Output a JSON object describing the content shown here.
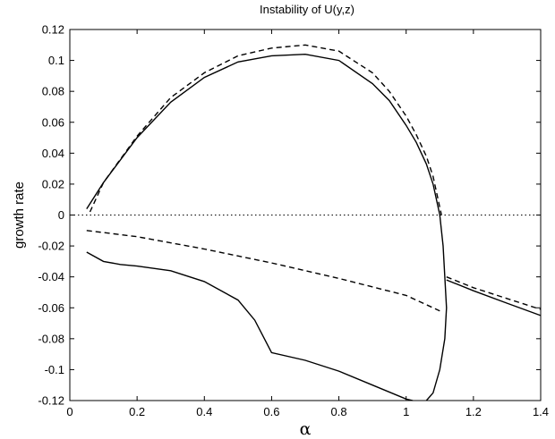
{
  "chart_data": {
    "type": "line",
    "title": "Instability of U(y,z)",
    "xlabel": "α",
    "ylabel": "growth rate",
    "xlim": [
      0,
      1.4
    ],
    "ylim": [
      -0.12,
      0.12
    ],
    "xticks": [
      "0",
      "0.2",
      "0.4",
      "0.6",
      "0.8",
      "1",
      "1.2",
      "1.4"
    ],
    "yticks": [
      "-0.12",
      "-0.1",
      "-0.08",
      "-0.06",
      "-0.04",
      "-0.02",
      "0",
      "0.02",
      "0.04",
      "0.06",
      "0.08",
      "0.1",
      "0.12"
    ],
    "grid": false,
    "series": [
      {
        "style": "solid",
        "color": "#000000",
        "x": [
          0.05,
          0.1,
          0.2,
          0.3,
          0.4,
          0.5,
          0.6,
          0.7,
          0.8,
          0.9,
          0.95,
          1.0,
          1.03,
          1.06,
          1.08,
          1.1,
          1.11,
          1.115,
          1.12,
          1.115,
          1.1,
          1.08,
          1.06
        ],
        "y": [
          0.004,
          0.021,
          0.05,
          0.073,
          0.089,
          0.099,
          0.103,
          0.104,
          0.1,
          0.085,
          0.074,
          0.058,
          0.047,
          0.033,
          0.02,
          0.0,
          -0.02,
          -0.04,
          -0.06,
          -0.08,
          -0.1,
          -0.115,
          -0.12
        ]
      },
      {
        "style": "solid",
        "color": "#000000",
        "x": [
          0.05,
          0.1,
          0.15,
          0.2,
          0.3,
          0.4,
          0.5,
          0.55,
          0.6,
          0.7,
          0.8,
          0.9,
          1.0,
          1.02
        ],
        "y": [
          -0.024,
          -0.03,
          -0.032,
          -0.033,
          -0.036,
          -0.043,
          -0.055,
          -0.068,
          -0.089,
          -0.094,
          -0.101,
          -0.11,
          -0.119,
          -0.12
        ]
      },
      {
        "style": "solid",
        "color": "#000000",
        "x": [
          1.12,
          1.2,
          1.3,
          1.4
        ],
        "y": [
          -0.042,
          -0.049,
          -0.057,
          -0.065
        ]
      },
      {
        "style": "dashed",
        "color": "#000000",
        "x": [
          0.06,
          0.1,
          0.2,
          0.3,
          0.4,
          0.5,
          0.6,
          0.7,
          0.8,
          0.9,
          0.95,
          1.0,
          1.03,
          1.06,
          1.08,
          1.1,
          1.105
        ],
        "y": [
          0.002,
          0.021,
          0.051,
          0.076,
          0.092,
          0.103,
          0.108,
          0.11,
          0.106,
          0.092,
          0.08,
          0.064,
          0.052,
          0.038,
          0.025,
          0.005,
          0.0
        ]
      },
      {
        "style": "dashed",
        "color": "#000000",
        "x": [
          0.05,
          0.2,
          0.4,
          0.6,
          0.8,
          1.0,
          1.1
        ],
        "y": [
          -0.01,
          -0.014,
          -0.022,
          -0.031,
          -0.041,
          -0.052,
          -0.062
        ]
      },
      {
        "style": "dashed",
        "color": "#000000",
        "x": [
          1.12,
          1.2,
          1.3,
          1.4
        ],
        "y": [
          -0.04,
          -0.047,
          -0.054,
          -0.061
        ]
      },
      {
        "style": "dotted",
        "color": "#000000",
        "x": [
          0,
          1.4
        ],
        "y": [
          0,
          0
        ]
      }
    ]
  }
}
